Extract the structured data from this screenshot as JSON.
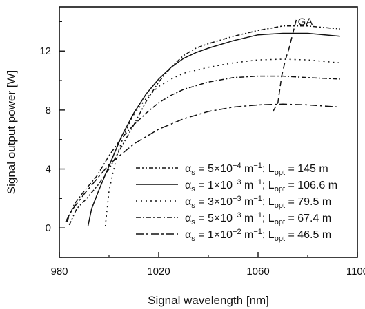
{
  "chart_data": {
    "type": "line",
    "xlabel": "Signal wavelength [nm]",
    "ylabel": "Signal output power [W]",
    "xlim": [
      980,
      1100
    ],
    "ylim": [
      -2,
      15
    ],
    "xticks": [
      980,
      1020,
      1060,
      1100
    ],
    "yticks": [
      0,
      4,
      8,
      12
    ],
    "grid": false,
    "legend_position": "bottom-right",
    "annotations": [
      {
        "text": "GA",
        "x": 1076,
        "y": 14.0
      }
    ],
    "series": [
      {
        "name": "α_s = 5×10⁻⁴ m⁻¹; L_opt = 145 m",
        "legend": {
          "sym": "α",
          "sub": "s",
          "mid": " = 5×10",
          "exp": "−4",
          "unit": " m",
          "uexp": "−1",
          "sep": "; L",
          "lsub": "opt",
          "val": " = 145 m"
        },
        "dash": "6,3,2,3,2,3",
        "x": [
          984,
          987,
          991,
          996,
          1000,
          1005,
          1010,
          1015,
          1020,
          1025,
          1030,
          1035,
          1040,
          1050,
          1060,
          1070,
          1080,
          1093
        ],
        "y": [
          0.2,
          1.3,
          2.0,
          3.0,
          4.0,
          5.5,
          7.0,
          8.6,
          9.9,
          10.9,
          11.7,
          12.2,
          12.5,
          13.0,
          13.4,
          13.7,
          13.7,
          13.5
        ]
      },
      {
        "name": "α_s = 1×10⁻³ m⁻¹; L_opt = 106.6 m",
        "legend": {
          "sym": "α",
          "sub": "s",
          "mid": " = 1×10",
          "exp": "−3",
          "unit": " m",
          "uexp": "−1",
          "sep": "; L",
          "lsub": "opt",
          "val": " = 106.6 m"
        },
        "dash": "",
        "x": [
          991.5,
          993,
          996,
          999,
          1002,
          1005,
          1010,
          1015,
          1020,
          1025,
          1030,
          1035,
          1040,
          1050,
          1060,
          1070,
          1080,
          1093
        ],
        "y": [
          0.1,
          1.3,
          2.6,
          3.8,
          5.0,
          6.2,
          7.8,
          9.1,
          10.1,
          10.9,
          11.5,
          11.9,
          12.2,
          12.7,
          13.1,
          13.2,
          13.2,
          13.0
        ]
      },
      {
        "name": "α_s = 3×10⁻³ m⁻¹; L_opt = 79.5 m",
        "legend": {
          "sym": "α",
          "sub": "s",
          "mid": " = 3×10",
          "exp": "−3",
          "unit": " m",
          "uexp": "−1",
          "sep": "; L",
          "lsub": "opt",
          "val": " = 79.5 m"
        },
        "dash": "2,5",
        "x": [
          998.5,
          1000,
          1003,
          1006,
          1010,
          1015,
          1020,
          1025,
          1030,
          1040,
          1050,
          1060,
          1070,
          1080,
          1093
        ],
        "y": [
          0.1,
          2.5,
          4.8,
          6.3,
          7.7,
          8.8,
          9.6,
          10.1,
          10.5,
          10.9,
          11.2,
          11.4,
          11.45,
          11.4,
          11.2
        ]
      },
      {
        "name": "α_s = 5×10⁻³ m⁻¹; L_opt = 67.4 m",
        "legend": {
          "sym": "α",
          "sub": "s",
          "mid": " = 5×10",
          "exp": "−3",
          "unit": " m",
          "uexp": "−1",
          "sep": "; L",
          "lsub": "opt",
          "val": " = 67.4 m"
        },
        "dash": "7,3,2,3",
        "x": [
          983,
          986,
          990,
          995,
          1000,
          1005,
          1010,
          1015,
          1020,
          1025,
          1030,
          1040,
          1050,
          1060,
          1070,
          1080,
          1093
        ],
        "y": [
          0.4,
          1.6,
          2.5,
          3.5,
          4.9,
          6.1,
          7.0,
          7.8,
          8.5,
          9.0,
          9.4,
          9.9,
          10.2,
          10.3,
          10.3,
          10.2,
          10.1
        ]
      },
      {
        "name": "α_s = 1×10⁻² m⁻¹; L_opt = 46.5 m",
        "legend": {
          "sym": "α",
          "sub": "s",
          "mid": " = 1×10",
          "exp": "−2",
          "unit": " m",
          "uexp": "−1",
          "sep": "; L",
          "lsub": "opt",
          "val": " = 46.5 m"
        },
        "dash": "11,4,3,4",
        "x": [
          982.5,
          985,
          990,
          995,
          1000,
          1005,
          1010,
          1015,
          1020,
          1030,
          1040,
          1050,
          1060,
          1070,
          1080,
          1093
        ],
        "y": [
          0.4,
          1.2,
          2.3,
          3.3,
          4.3,
          5.0,
          5.7,
          6.2,
          6.7,
          7.4,
          7.9,
          8.2,
          8.35,
          8.4,
          8.35,
          8.2
        ]
      },
      {
        "name": "GA",
        "dash": "8,5",
        "x": [
          1066,
          1068,
          1069.5,
          1071,
          1072.5,
          1074,
          1075.5
        ],
        "y": [
          7.9,
          8.5,
          10.3,
          11.4,
          12.2,
          13.2,
          14.2
        ]
      }
    ]
  }
}
